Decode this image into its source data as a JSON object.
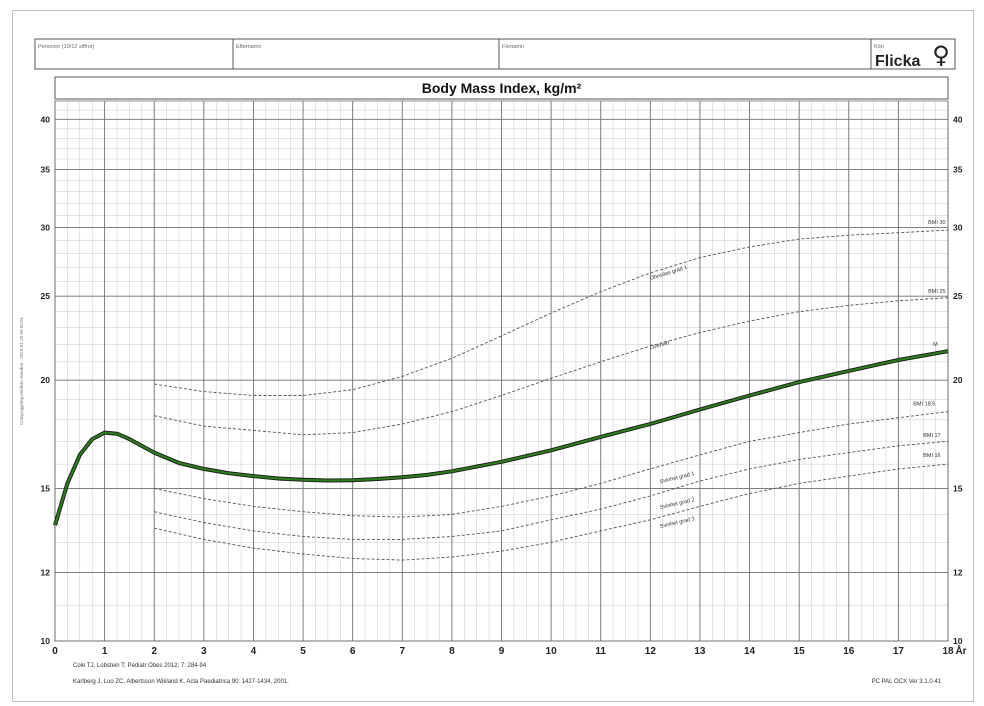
{
  "header": {
    "fields": [
      {
        "label": "Personnr (10/12 siffror)",
        "value": ""
      },
      {
        "label": "Efternamn",
        "value": ""
      },
      {
        "label": "Förnamn",
        "value": ""
      },
      {
        "label": "Kön",
        "value": "Flicka"
      }
    ],
    "gender_symbol": "♀"
  },
  "side_note": "Compuggning Medicin Sweden - 2023-01-20 09:50:01",
  "footer": {
    "ref1": "Cole TJ, Lobstein T; Pediatr Obes 2012; 7: 284-94",
    "ref2": "Karlberg J, Luo ZC, Albertsson Wikland K. Acta Paediatrica 90: 1427-1434, 2001.",
    "version": "PC PAL OCX Ver 3.1.0.41"
  },
  "chart_data": {
    "type": "line",
    "title": "Body Mass Index, kg/m²",
    "xlabel": "År",
    "ylabel": "",
    "xlim": [
      0,
      18
    ],
    "ylim": [
      10,
      42
    ],
    "y_scale": "log",
    "grid": true,
    "x_ticks": [
      0,
      1,
      2,
      3,
      4,
      5,
      6,
      7,
      8,
      9,
      10,
      11,
      12,
      13,
      14,
      15,
      16,
      17,
      18
    ],
    "x_tick_labels": [
      "0",
      "1",
      "2",
      "3",
      "4",
      "5",
      "6",
      "7",
      "8",
      "9",
      "10",
      "11",
      "12",
      "13",
      "14",
      "15",
      "16",
      "17",
      "18"
    ],
    "y_ticks": [
      10,
      12,
      15,
      20,
      25,
      30,
      35,
      40
    ],
    "colors": {
      "median": "#2d7a1f",
      "reference": "#555555",
      "grid_major": "#707070",
      "grid_minor": "#c8c8c8"
    },
    "series": [
      {
        "name": "M",
        "style": "solid",
        "x": [
          0,
          0.25,
          0.5,
          0.75,
          1,
          1.25,
          1.5,
          2,
          2.5,
          3,
          3.5,
          4,
          4.5,
          5,
          5.5,
          6,
          6.5,
          7,
          7.5,
          8,
          9,
          10,
          11,
          12,
          13,
          14,
          15,
          16,
          17,
          18
        ],
        "y": [
          13.6,
          15.2,
          16.4,
          17.1,
          17.4,
          17.35,
          17.1,
          16.5,
          16.05,
          15.8,
          15.62,
          15.5,
          15.4,
          15.35,
          15.32,
          15.33,
          15.38,
          15.45,
          15.55,
          15.7,
          16.1,
          16.6,
          17.2,
          17.8,
          18.5,
          19.2,
          19.9,
          20.5,
          21.1,
          21.6
        ]
      },
      {
        "name": "BMI 30",
        "style": "dashed",
        "x": [
          2,
          3,
          4,
          5,
          6,
          7,
          8,
          9,
          10,
          11,
          12,
          13,
          14,
          15,
          16,
          17,
          18
        ],
        "y": [
          19.8,
          19.4,
          19.2,
          19.2,
          19.5,
          20.2,
          21.2,
          22.5,
          23.9,
          25.3,
          26.6,
          27.7,
          28.5,
          29.1,
          29.4,
          29.6,
          29.8
        ]
      },
      {
        "name": "BMI 25",
        "style": "dashed",
        "x": [
          2,
          3,
          4,
          5,
          6,
          7,
          8,
          9,
          10,
          11,
          12,
          13,
          14,
          15,
          16,
          17,
          18
        ],
        "y": [
          18.2,
          17.7,
          17.5,
          17.3,
          17.4,
          17.8,
          18.4,
          19.2,
          20.1,
          21.0,
          21.9,
          22.7,
          23.4,
          24.0,
          24.4,
          24.7,
          24.9
        ]
      },
      {
        "name": "BMI 18,5",
        "style": "dashed",
        "x": [
          2,
          3,
          4,
          5,
          6,
          7,
          8,
          9,
          10,
          11,
          12,
          13,
          14,
          15,
          16,
          17,
          18
        ],
        "y": [
          15.0,
          14.6,
          14.3,
          14.1,
          13.95,
          13.9,
          14.0,
          14.3,
          14.7,
          15.2,
          15.8,
          16.4,
          17.0,
          17.4,
          17.8,
          18.1,
          18.4
        ]
      },
      {
        "name": "BMI 17",
        "style": "dashed",
        "x": [
          2,
          3,
          4,
          5,
          6,
          7,
          8,
          9,
          10,
          11,
          12,
          13,
          14,
          15,
          16,
          17,
          18
        ],
        "y": [
          14.1,
          13.7,
          13.4,
          13.2,
          13.1,
          13.1,
          13.2,
          13.4,
          13.8,
          14.2,
          14.7,
          15.3,
          15.8,
          16.2,
          16.5,
          16.8,
          17.0
        ]
      },
      {
        "name": "BMI 16",
        "style": "dashed",
        "x": [
          2,
          3,
          4,
          5,
          6,
          7,
          8,
          9,
          10,
          11,
          12,
          13,
          14,
          15,
          16,
          17,
          18
        ],
        "y": [
          13.5,
          13.1,
          12.8,
          12.6,
          12.45,
          12.4,
          12.5,
          12.7,
          13.0,
          13.4,
          13.8,
          14.3,
          14.8,
          15.2,
          15.5,
          15.8,
          16.0
        ]
      }
    ],
    "annotations": [
      {
        "text": "BMI 30",
        "x": 17.6,
        "y": 30.3
      },
      {
        "text": "BMI 25",
        "x": 17.6,
        "y": 25.2
      },
      {
        "text": "M",
        "x": 17.7,
        "y": 21.9
      },
      {
        "text": "BMI 18,5",
        "x": 17.3,
        "y": 18.7
      },
      {
        "text": "BMI 17",
        "x": 17.5,
        "y": 17.2
      },
      {
        "text": "BMI 16",
        "x": 17.5,
        "y": 16.3
      },
      {
        "text": "Obesitas grad 1",
        "x": 12.0,
        "y": 26.1,
        "rotate": -17
      },
      {
        "text": "Övervikt",
        "x": 12.0,
        "y": 21.7,
        "rotate": -15
      },
      {
        "text": "Svinhet grad 1",
        "x": 12.2,
        "y": 15.2,
        "rotate": -14
      },
      {
        "text": "Svinhet grad 2",
        "x": 12.2,
        "y": 14.2,
        "rotate": -13
      },
      {
        "text": "Svinhet grad 3",
        "x": 12.2,
        "y": 13.5,
        "rotate": -13
      }
    ]
  }
}
